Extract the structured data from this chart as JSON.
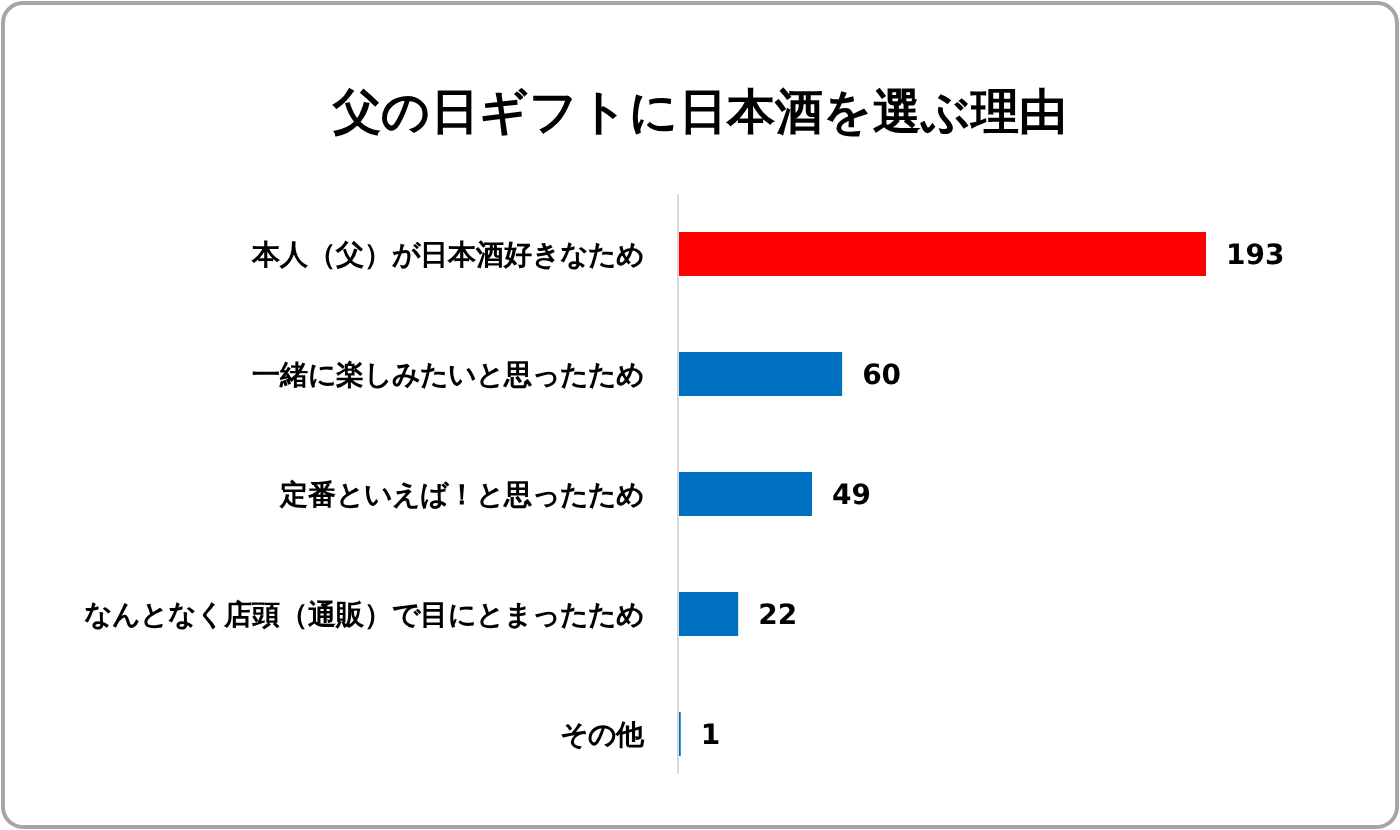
{
  "chart_data": {
    "type": "bar",
    "orientation": "horizontal",
    "title": "父の日ギフトに日本酒を選ぶ理由",
    "categories": [
      "本人（父）が日本酒好きなため",
      "一緒に楽しみたいと思ったため",
      "定番といえば！と思ったため",
      "なんとなく店頭（通販）で目にとまったため",
      "その他"
    ],
    "values": [
      193,
      60,
      49,
      22,
      1
    ],
    "colors": [
      "#ff0000",
      "#0070c0",
      "#0070c0",
      "#0070c0",
      "#0070c0"
    ],
    "data_labels": true
  }
}
